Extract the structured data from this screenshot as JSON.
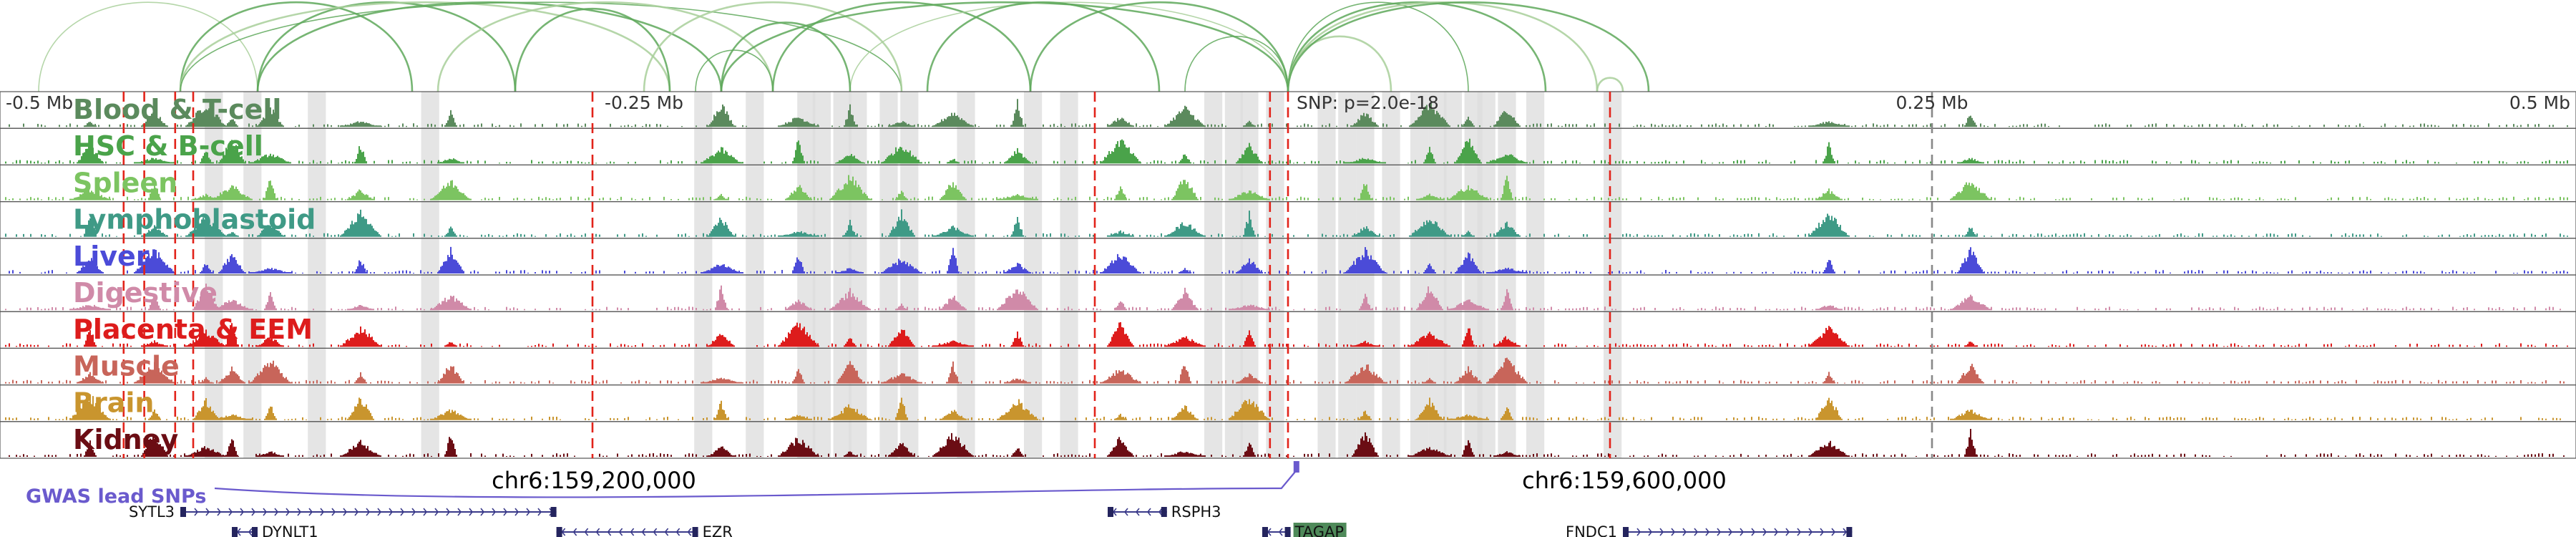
{
  "chart_data": {
    "type": "genome_browser_tracks",
    "locus": "chr6",
    "x_units": "Mb relative to lead SNP",
    "xlim": [
      -0.5,
      0.5
    ],
    "axis_ticks": [
      {
        "value": -0.5,
        "label": "-0.5 Mb"
      },
      {
        "value": -0.25,
        "label": "-0.25 Mb"
      },
      {
        "value": 0.25,
        "label": "0.25 Mb"
      },
      {
        "value": 0.5,
        "label": "0.5 Mb"
      }
    ],
    "snp_annotation": {
      "label": "SNP: p=2.0e-18",
      "position": 0.0
    },
    "coordinate_labels": [
      {
        "label": "chr6:159,200,000",
        "position": -0.27
      },
      {
        "label": "chr6:159,600,000",
        "position": 0.13
      }
    ],
    "gwas": {
      "label": "GWAS lead SNPs",
      "lead_position": 0.003
    },
    "tracks": [
      {
        "name": "Blood & T-cell",
        "color": "#5b8a5d"
      },
      {
        "name": "HSC & B-cell",
        "color": "#4aa34a"
      },
      {
        "name": "Spleen",
        "color": "#7cc461"
      },
      {
        "name": "Lymphoblastoid",
        "color": "#3f9a86"
      },
      {
        "name": "Liver",
        "color": "#4b4bd8"
      },
      {
        "name": "Digestive",
        "color": "#d08aa8"
      },
      {
        "name": "Placenta & EEM",
        "color": "#dd1c1c"
      },
      {
        "name": "Muscle",
        "color": "#c8655a"
      },
      {
        "name": "Brain",
        "color": "#c9952e"
      },
      {
        "name": "Kidney",
        "color": "#6b0d14"
      }
    ],
    "peak_positions": [
      -0.465,
      -0.44,
      -0.42,
      -0.41,
      -0.395,
      -0.36,
      -0.325,
      -0.22,
      -0.19,
      -0.17,
      -0.15,
      -0.13,
      -0.105,
      -0.065,
      -0.04,
      -0.015,
      0.03,
      0.055,
      0.07,
      0.085,
      0.21,
      0.265
    ],
    "highlight_regions": [
      [
        -0.4205,
        -0.4135
      ],
      [
        -0.4055,
        -0.3985
      ],
      [
        -0.3805,
        -0.3735
      ],
      [
        -0.3365,
        -0.3295
      ],
      [
        -0.2305,
        -0.2235
      ],
      [
        -0.2105,
        -0.2035
      ],
      [
        -0.1905,
        -0.1835
      ],
      [
        -0.1845,
        -0.1775
      ],
      [
        -0.1765,
        -0.1695
      ],
      [
        -0.1705,
        -0.1635
      ],
      [
        -0.1585,
        -0.1515
      ],
      [
        -0.1505,
        -0.1435
      ],
      [
        -0.1285,
        -0.1215
      ],
      [
        -0.1025,
        -0.0955
      ],
      [
        -0.0885,
        -0.0815
      ],
      [
        -0.0325,
        -0.0255
      ],
      [
        -0.0245,
        -0.0175
      ],
      [
        -0.0185,
        -0.0115
      ],
      [
        -0.0085,
        -0.0015
      ],
      [
        0.0115,
        0.0185
      ],
      [
        0.0195,
        0.0265
      ],
      [
        0.0265,
        0.0335
      ],
      [
        0.0365,
        0.0435
      ],
      [
        0.0475,
        0.0545
      ],
      [
        0.0545,
        0.0615
      ],
      [
        0.0605,
        0.0675
      ],
      [
        0.0685,
        0.0755
      ],
      [
        0.0735,
        0.0805
      ],
      [
        0.0815,
        0.0885
      ],
      [
        0.0925,
        0.0995
      ],
      [
        0.1225,
        0.1295
      ]
    ],
    "red_dashed_lines": [
      -0.452,
      -0.444,
      -0.432,
      -0.425,
      -0.27,
      -0.075,
      -0.007,
      0.0,
      0.125
    ],
    "gray_dashed_lines": [
      0.25
    ],
    "loops": [
      [
        -0.485,
        -0.4
      ],
      [
        -0.4,
        -0.3
      ],
      [
        -0.43,
        -0.34
      ],
      [
        -0.43,
        -0.24
      ],
      [
        -0.43,
        -0.15
      ],
      [
        -0.4,
        -0.22
      ],
      [
        -0.33,
        -0.2
      ],
      [
        -0.3,
        -0.24
      ],
      [
        -0.23,
        -0.2
      ],
      [
        -0.25,
        -0.15
      ],
      [
        -0.2,
        -0.1
      ],
      [
        -0.22,
        -0.0
      ],
      [
        -0.17,
        -0.0
      ],
      [
        -0.1,
        0.0
      ],
      [
        -0.14,
        -0.05
      ],
      [
        -0.0,
        0.04
      ],
      [
        -0.0,
        0.07
      ],
      [
        -0.0,
        0.1
      ],
      [
        0.0,
        0.12
      ],
      [
        0.0,
        0.14
      ],
      [
        -0.04,
        0.0
      ],
      [
        0.12,
        0.13
      ],
      [
        -0.22,
        -0.17
      ]
    ],
    "genes": [
      {
        "name": "SYTL3",
        "start": -0.43,
        "end": -0.284,
        "strand": "+",
        "row": 1,
        "label_side": "left"
      },
      {
        "name": "DYNLT1",
        "start": -0.41,
        "end": -0.4,
        "strand": "-",
        "row": 2,
        "label_side": "right"
      },
      {
        "name": "EZR",
        "start": -0.284,
        "end": -0.229,
        "strand": "-",
        "row": 2,
        "label_side": "right"
      },
      {
        "name": "RSPH3",
        "start": -0.07,
        "end": -0.047,
        "strand": "-",
        "row": 1,
        "label_side": "right"
      },
      {
        "name": "TAGAP",
        "start": -0.01,
        "end": 0.001,
        "strand": "-",
        "row": 2,
        "label_side": "right"
      },
      {
        "name": "FNDC1",
        "start": 0.13,
        "end": 0.219,
        "strand": "+",
        "row": 2,
        "label_side": "left"
      }
    ]
  }
}
